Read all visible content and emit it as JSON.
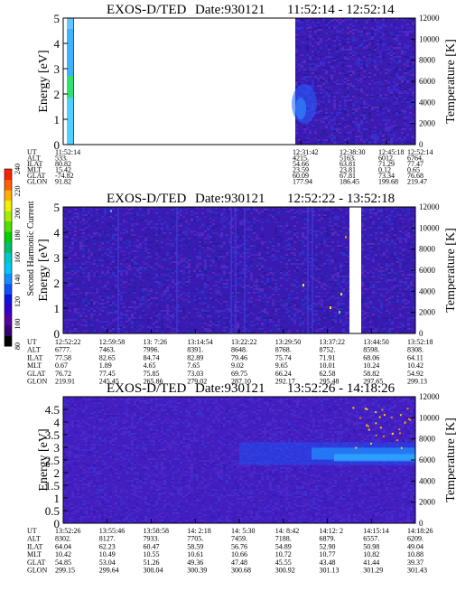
{
  "colorbar": {
    "label": "Second Harmonic Current",
    "ticks": [
      "240",
      "220",
      "200",
      "180",
      "160",
      "140",
      "120",
      "100",
      "80"
    ],
    "colors": [
      "#000000",
      "#3a0070",
      "#5500a0",
      "#3300cc",
      "#1010e0",
      "#1050ff",
      "#1090ff",
      "#00c8ff",
      "#00c8c8",
      "#00c070",
      "#00d000",
      "#50e000",
      "#a0f000",
      "#f0f000",
      "#ffb000",
      "#ff6000",
      "#ff2000"
    ]
  },
  "chart_data": [
    {
      "type": "heatmap",
      "title": "EXOS-D/TED",
      "date_label": "Date:930121",
      "time_range": "11:52:14 - 12:52:14",
      "ylabel": "Energy [eV]",
      "ylim": [
        0,
        5
      ],
      "yticks": [
        "0",
        "1",
        "2",
        "3",
        "4",
        "5"
      ],
      "y2label": "Temperature [K]",
      "y2lim": [
        0,
        12000
      ],
      "y2ticks": [
        "0",
        "2000",
        "4000",
        "6000",
        "8000",
        "10000",
        "12000"
      ],
      "orbit_labels": [
        "UT",
        "ALT",
        "ILAT",
        "MLT",
        "GLAT",
        "GLON"
      ],
      "orbit_columns": [
        [
          "11:52:14",
          "533.",
          "80.82",
          "15.42",
          "-74.82",
          "91.82"
        ],
        [
          "12:31:42",
          "4215.",
          "54.66",
          "23.59",
          "60.09",
          "177.94"
        ],
        [
          "12:38:30",
          "5163.",
          "63.81",
          "23.81",
          "67.81",
          "186.45"
        ],
        [
          "12:45:18",
          "6012.",
          "71.29",
          "0.12",
          "73.34",
          "199.68"
        ],
        [
          "12:52:14",
          "6764.",
          "77.47",
          "0.65",
          "76.68",
          "219.47"
        ]
      ]
    },
    {
      "type": "heatmap",
      "title": "EXOS-D/TED",
      "date_label": "Date:930121",
      "time_range": "12:52:22 - 13:52:18",
      "ylabel": "Energy [eV]",
      "ylim": [
        0,
        5
      ],
      "yticks": [
        "0",
        "1",
        "2",
        "3",
        "4",
        "5"
      ],
      "y2label": "Temperature [K]",
      "y2lim": [
        0,
        12000
      ],
      "y2ticks": [
        "0",
        "2000",
        "4000",
        "6000",
        "8000",
        "10000",
        "12000"
      ],
      "orbit_labels": [
        "UT",
        "ALT",
        "ILAT",
        "MLT",
        "GLAT",
        "GLON"
      ],
      "orbit_columns": [
        [
          "12:52:22",
          "6777.",
          "77.58",
          "0.67",
          "76.72",
          "219.91"
        ],
        [
          "12:59:58",
          "7463.",
          "82.65",
          "1.89",
          "77.45",
          "245.45"
        ],
        [
          "13: 7:26",
          "7996.",
          "84.74",
          "4.65",
          "75.85",
          "265.86"
        ],
        [
          "13:14:54",
          "8391.",
          "82.89",
          "7.65",
          "73.03",
          "279.02"
        ],
        [
          "13:22:22",
          "8648.",
          "79.46",
          "9.02",
          "69.75",
          "287.10"
        ],
        [
          "13:29:50",
          "8768.",
          "75.74",
          "9.65",
          "66.24",
          "292.17"
        ],
        [
          "13:37:22",
          "8752.",
          "71.91",
          "10.01",
          "62.58",
          "295.48"
        ],
        [
          "13:44:50",
          "8598.",
          "68.06",
          "10.24",
          "58.82",
          "297.65"
        ],
        [
          "13:52:18",
          "8308.",
          "64.11",
          "10.42",
          "54.92",
          "299.13"
        ]
      ]
    },
    {
      "type": "heatmap",
      "title": "EXOS-D/TED",
      "date_label": "Date:930121",
      "time_range": "13:52:26 - 14:18:26",
      "ylabel": "Energy [eV]",
      "ylim": [
        0,
        5
      ],
      "yticks": [
        "0",
        "0.5",
        "1",
        "1.5",
        "2",
        "2.5",
        "3",
        "3.5",
        "4",
        "4.5"
      ],
      "y2label": "Temperature [K]",
      "y2lim": [
        0,
        12000
      ],
      "y2ticks": [
        "0",
        "2000",
        "4000",
        "6000",
        "8000",
        "10000",
        "12000"
      ],
      "orbit_labels": [
        "UT",
        "ALT",
        "ILAT",
        "MLT",
        "GLAT",
        "GLON"
      ],
      "orbit_columns": [
        [
          "13:52:26",
          "8302.",
          "64.04",
          "10.42",
          "54.85",
          "299.15"
        ],
        [
          "13:55:46",
          "8127.",
          "62.23",
          "10.49",
          "53.04",
          "299.64"
        ],
        [
          "13:58:58",
          "7933.",
          "60.47",
          "10.55",
          "51.26",
          "300.04"
        ],
        [
          "14: 2:18",
          "7705.",
          "58.59",
          "10.61",
          "49.36",
          "300.39"
        ],
        [
          "14: 5:30",
          "7459.",
          "56.76",
          "10.66",
          "47.48",
          "300.68"
        ],
        [
          "14: 8:42",
          "7188.",
          "54.89",
          "10.72",
          "45.55",
          "300.92"
        ],
        [
          "14:12: 2",
          "6879.",
          "52.90",
          "10.77",
          "43.48",
          "301.13"
        ],
        [
          "14:15:14",
          "6557.",
          "50.98",
          "10.82",
          "41.44",
          "301.29"
        ],
        [
          "14:18:26",
          "6209.",
          "49.04",
          "10.88",
          "39.37",
          "301.43"
        ]
      ]
    }
  ]
}
